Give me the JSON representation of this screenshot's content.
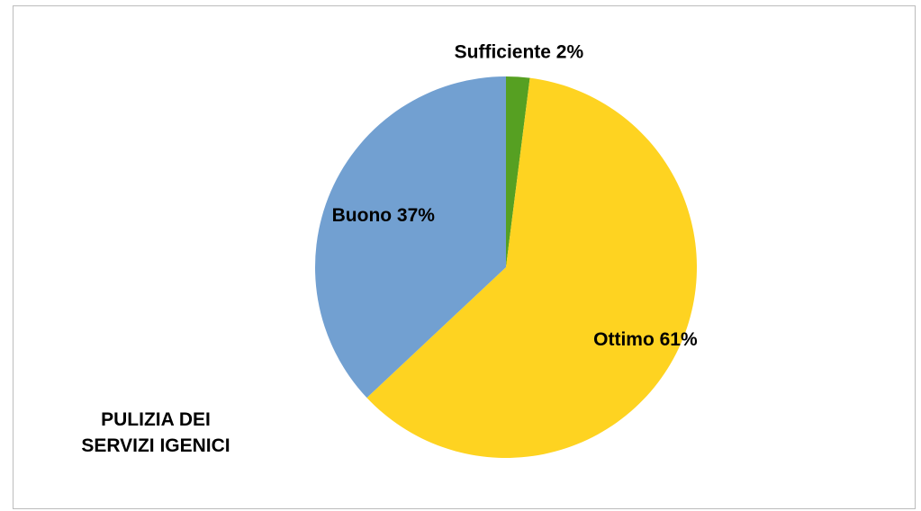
{
  "chart_data": {
    "type": "pie",
    "title": "PULIZIA DEI\nSERVIZI IGENICI",
    "categories": [
      "Sufficiente",
      "Ottimo",
      "Buono"
    ],
    "values": [
      2,
      61,
      37
    ],
    "labels": [
      "Sufficiente 2%",
      "Ottimo 61%",
      "Buono 37%"
    ],
    "colors": [
      "#56a022",
      "#fed321",
      "#72a0d1"
    ],
    "start_angle_deg": 0,
    "direction": "clockwise",
    "legend": "none"
  }
}
